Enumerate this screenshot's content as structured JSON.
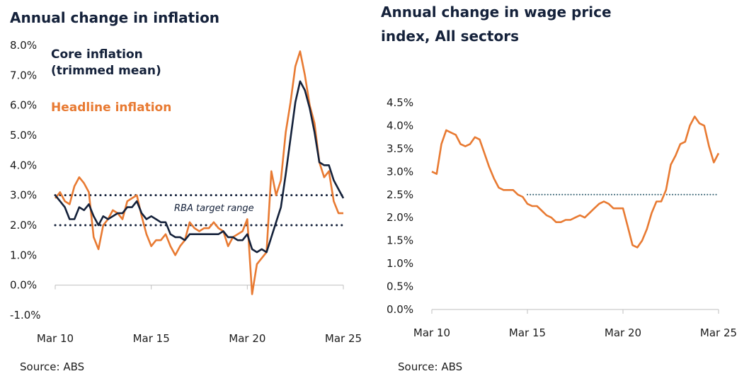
{
  "colors": {
    "core": "#14213a",
    "headline": "#e87a32",
    "target": "#14213a",
    "wage_ref": "#2f5d6e",
    "axis": "#bfbfbf"
  },
  "chart_data": [
    {
      "type": "line",
      "title": "Annual change in inflation",
      "source": "Source: ABS",
      "x_tick_labels": [
        "Mar 10",
        "Mar 15",
        "Mar 20",
        "Mar 25"
      ],
      "y_tick_labels": [
        "-1.0%",
        "0.0%",
        "1.0%",
        "2.0%",
        "3.0%",
        "4.0%",
        "5.0%",
        "6.0%",
        "7.0%",
        "8.0%"
      ],
      "ylim": [
        -1,
        8
      ],
      "target_range": {
        "label": "RBA target range",
        "low": 2,
        "high": 3
      },
      "series": [
        {
          "name": "Core inflation (trimmed mean)",
          "name_lines": [
            "Core inflation",
            "(trimmed mean)"
          ],
          "x": [
            2010.0,
            2010.25,
            2010.5,
            2010.75,
            2011.0,
            2011.25,
            2011.5,
            2011.75,
            2012.0,
            2012.25,
            2012.5,
            2012.75,
            2013.0,
            2013.25,
            2013.5,
            2013.75,
            2014.0,
            2014.25,
            2014.5,
            2014.75,
            2015.0,
            2015.25,
            2015.5,
            2015.75,
            2016.0,
            2016.25,
            2016.5,
            2016.75,
            2017.0,
            2017.25,
            2017.5,
            2017.75,
            2018.0,
            2018.25,
            2018.5,
            2018.75,
            2019.0,
            2019.25,
            2019.5,
            2019.75,
            2020.0,
            2020.25,
            2020.5,
            2020.75,
            2021.0,
            2021.25,
            2021.5,
            2021.75,
            2022.0,
            2022.25,
            2022.5,
            2022.75,
            2023.0,
            2023.25,
            2023.5,
            2023.75,
            2024.0,
            2024.25,
            2024.5,
            2024.75,
            2025.0
          ],
          "values": [
            3.0,
            2.8,
            2.6,
            2.2,
            2.2,
            2.6,
            2.5,
            2.7,
            2.3,
            2.0,
            2.3,
            2.2,
            2.3,
            2.4,
            2.4,
            2.6,
            2.6,
            2.8,
            2.4,
            2.2,
            2.3,
            2.2,
            2.1,
            2.1,
            1.7,
            1.6,
            1.6,
            1.5,
            1.7,
            1.7,
            1.7,
            1.7,
            1.7,
            1.7,
            1.7,
            1.8,
            1.6,
            1.6,
            1.5,
            1.5,
            1.7,
            1.2,
            1.1,
            1.2,
            1.1,
            1.6,
            2.1,
            2.6,
            3.7,
            4.9,
            6.1,
            6.8,
            6.5,
            5.9,
            5.1,
            4.1,
            4.0,
            4.0,
            3.5,
            3.2,
            2.9
          ]
        },
        {
          "name": "Headline inflation",
          "x": [
            2010.0,
            2010.25,
            2010.5,
            2010.75,
            2011.0,
            2011.25,
            2011.5,
            2011.75,
            2012.0,
            2012.25,
            2012.5,
            2012.75,
            2013.0,
            2013.25,
            2013.5,
            2013.75,
            2014.0,
            2014.25,
            2014.5,
            2014.75,
            2015.0,
            2015.25,
            2015.5,
            2015.75,
            2016.0,
            2016.25,
            2016.5,
            2016.75,
            2017.0,
            2017.25,
            2017.5,
            2017.75,
            2018.0,
            2018.25,
            2018.5,
            2018.75,
            2019.0,
            2019.25,
            2019.5,
            2019.75,
            2020.0,
            2020.25,
            2020.5,
            2020.75,
            2021.0,
            2021.25,
            2021.5,
            2021.75,
            2022.0,
            2022.25,
            2022.5,
            2022.75,
            2023.0,
            2023.25,
            2023.5,
            2023.75,
            2024.0,
            2024.25,
            2024.5,
            2024.75,
            2025.0
          ],
          "values": [
            2.9,
            3.1,
            2.8,
            2.7,
            3.3,
            3.6,
            3.4,
            3.1,
            1.6,
            1.2,
            2.0,
            2.2,
            2.5,
            2.4,
            2.2,
            2.8,
            2.9,
            3.0,
            2.3,
            1.7,
            1.3,
            1.5,
            1.5,
            1.7,
            1.3,
            1.0,
            1.3,
            1.5,
            2.1,
            1.9,
            1.8,
            1.9,
            1.9,
            2.1,
            1.9,
            1.8,
            1.3,
            1.6,
            1.7,
            1.8,
            2.2,
            -0.3,
            0.7,
            0.9,
            1.1,
            3.8,
            3.0,
            3.5,
            5.1,
            6.1,
            7.3,
            7.8,
            7.0,
            6.0,
            5.4,
            4.1,
            3.6,
            3.8,
            2.8,
            2.4,
            2.4
          ]
        }
      ]
    },
    {
      "type": "line",
      "title_lines": [
        "Annual change in wage price",
        "index, All sectors"
      ],
      "source": "Source: ABS",
      "x_tick_labels": [
        "Mar 10",
        "Mar 15",
        "Mar 20",
        "Mar 25"
      ],
      "y_tick_labels": [
        "0.0%",
        "0.5%",
        "1.0%",
        "1.5%",
        "2.0%",
        "2.5%",
        "3.0%",
        "3.5%",
        "4.0%",
        "4.5%"
      ],
      "ylim": [
        0,
        4.5
      ],
      "reference_line": {
        "value": 2.5,
        "from": 2015.0,
        "to": 2025.0
      },
      "series": [
        {
          "x": [
            2010.0,
            2010.25,
            2010.5,
            2010.75,
            2011.0,
            2011.25,
            2011.5,
            2011.75,
            2012.0,
            2012.25,
            2012.5,
            2012.75,
            2013.0,
            2013.25,
            2013.5,
            2013.75,
            2014.0,
            2014.25,
            2014.5,
            2014.75,
            2015.0,
            2015.25,
            2015.5,
            2015.75,
            2016.0,
            2016.25,
            2016.5,
            2016.75,
            2017.0,
            2017.25,
            2017.5,
            2017.75,
            2018.0,
            2018.25,
            2018.5,
            2018.75,
            2019.0,
            2019.25,
            2019.5,
            2019.75,
            2020.0,
            2020.25,
            2020.5,
            2020.75,
            2021.0,
            2021.25,
            2021.5,
            2021.75,
            2022.0,
            2022.25,
            2022.5,
            2022.75,
            2023.0,
            2023.25,
            2023.5,
            2023.75,
            2024.0,
            2024.25,
            2024.5,
            2024.75,
            2025.0
          ],
          "values": [
            3.0,
            2.95,
            3.6,
            3.9,
            3.85,
            3.8,
            3.6,
            3.55,
            3.6,
            3.75,
            3.7,
            3.4,
            3.1,
            2.85,
            2.65,
            2.6,
            2.6,
            2.6,
            2.5,
            2.45,
            2.3,
            2.25,
            2.25,
            2.15,
            2.05,
            2.0,
            1.9,
            1.9,
            1.95,
            1.95,
            2.0,
            2.05,
            2.0,
            2.1,
            2.2,
            2.3,
            2.35,
            2.3,
            2.2,
            2.2,
            2.2,
            1.8,
            1.4,
            1.35,
            1.5,
            1.75,
            2.1,
            2.35,
            2.35,
            2.6,
            3.15,
            3.35,
            3.6,
            3.65,
            4.0,
            4.2,
            4.05,
            4.0,
            3.55,
            3.2,
            3.4
          ]
        }
      ]
    }
  ]
}
